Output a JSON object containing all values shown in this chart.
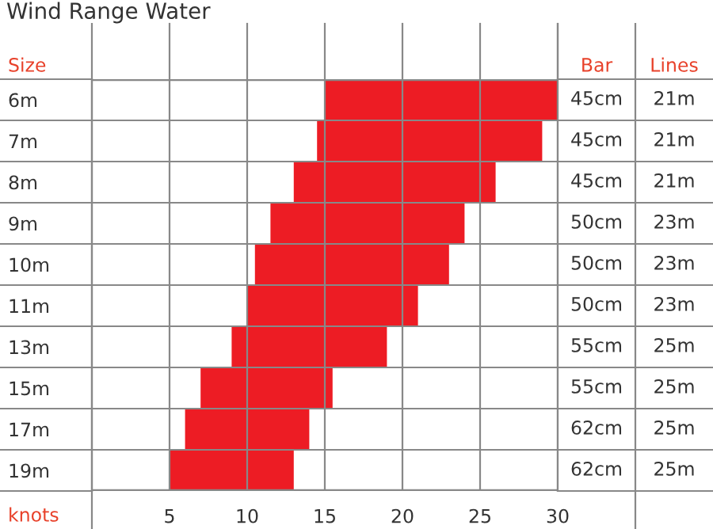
{
  "chart_data": {
    "type": "bar",
    "orientation": "horizontal",
    "title": "Wind Range Water",
    "ylabel": "Size",
    "xlabel": "knots",
    "categories": [
      "6m",
      "7m",
      "8m",
      "9m",
      "10m",
      "11m",
      "13m",
      "15m",
      "17m",
      "19m"
    ],
    "base": [
      15,
      14.5,
      13,
      11.5,
      10.5,
      10,
      9,
      7,
      6,
      5
    ],
    "values": [
      15,
      14.5,
      13,
      12.5,
      12.5,
      11,
      10,
      8.5,
      8,
      8
    ],
    "color": "#ed1c24",
    "xlim": [
      0,
      30
    ],
    "xticks": [
      5,
      10,
      15,
      20,
      25,
      30
    ],
    "grid": "x",
    "annotations": [
      "Bar",
      "Lines",
      "45cm",
      "21m",
      "45cm",
      "21m",
      "45cm",
      "21m",
      "50cm",
      "23m",
      "50cm",
      "23m",
      "50cm",
      "23m",
      "55cm",
      "25m",
      "55cm",
      "25m",
      "62cm",
      "25m",
      "62cm",
      "25m"
    ]
  }
}
